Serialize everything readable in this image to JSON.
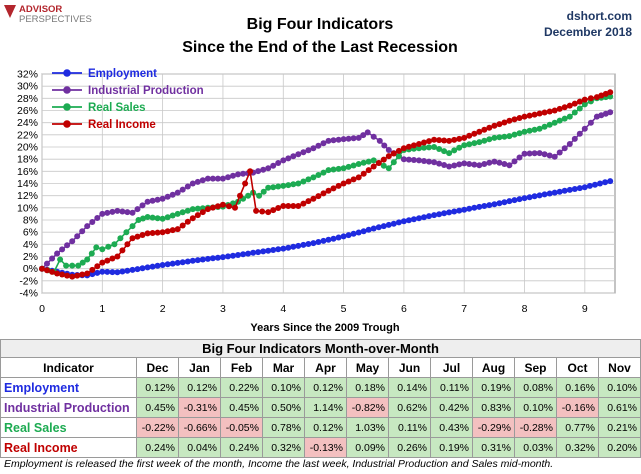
{
  "header": {
    "logo_line1": "ADVISOR",
    "logo_line2": "PERSPECTIVES",
    "title_line1": "Big Four Indicators",
    "title_line2": "Since the End of the Last Recession",
    "source": "dshort.com",
    "date": "December 2018"
  },
  "colors": {
    "employment": "#1f2be0",
    "industrial": "#7030a0",
    "sales": "#1dab52",
    "income": "#c00000"
  },
  "chart_data": {
    "type": "line",
    "title": "",
    "xlabel": "Years Since the 2009 Trough",
    "ylabel": "",
    "xlim": [
      0,
      9.5
    ],
    "ylim": [
      -4,
      32
    ],
    "x_ticks": [
      "0",
      "1",
      "2",
      "3",
      "4",
      "5",
      "6",
      "7",
      "8",
      "9"
    ],
    "y_ticks": [
      "-4%",
      "-2%",
      "0%",
      "2%",
      "4%",
      "6%",
      "8%",
      "10%",
      "12%",
      "14%",
      "16%",
      "18%",
      "20%",
      "22%",
      "24%",
      "26%",
      "28%",
      "30%",
      "32%"
    ],
    "grid": true,
    "legend_position": "top-left",
    "series": [
      {
        "name": "Employment",
        "key": "employment",
        "points": [
          [
            0,
            0
          ],
          [
            0.5,
            -1.0
          ],
          [
            0.75,
            -1.1
          ],
          [
            1.0,
            -0.5
          ],
          [
            1.25,
            -0.6
          ],
          [
            1.5,
            -0.2
          ],
          [
            2.0,
            0.6
          ],
          [
            2.5,
            1.3
          ],
          [
            3.0,
            1.9
          ],
          [
            3.5,
            2.6
          ],
          [
            4.0,
            3.3
          ],
          [
            4.5,
            4.2
          ],
          [
            5.0,
            5.3
          ],
          [
            5.5,
            6.6
          ],
          [
            6.0,
            7.8
          ],
          [
            6.5,
            8.8
          ],
          [
            7.0,
            9.7
          ],
          [
            7.5,
            10.6
          ],
          [
            8.0,
            11.6
          ],
          [
            8.5,
            12.5
          ],
          [
            9.0,
            13.4
          ],
          [
            9.42,
            14.4
          ]
        ]
      },
      {
        "name": "Industrial Production",
        "key": "industrial",
        "points": [
          [
            0,
            0
          ],
          [
            0.25,
            2.5
          ],
          [
            0.5,
            4.5
          ],
          [
            0.75,
            7.0
          ],
          [
            1.0,
            9.0
          ],
          [
            1.25,
            9.5
          ],
          [
            1.5,
            9.2
          ],
          [
            1.75,
            11.0
          ],
          [
            2.0,
            11.5
          ],
          [
            2.25,
            12.5
          ],
          [
            2.5,
            14.0
          ],
          [
            2.75,
            14.8
          ],
          [
            3.0,
            14.8
          ],
          [
            3.25,
            15.5
          ],
          [
            3.5,
            15.8
          ],
          [
            3.75,
            16.5
          ],
          [
            4.0,
            17.8
          ],
          [
            4.25,
            18.8
          ],
          [
            4.5,
            19.8
          ],
          [
            4.75,
            21.0
          ],
          [
            5.0,
            21.3
          ],
          [
            5.25,
            21.5
          ],
          [
            5.4,
            22.4
          ],
          [
            5.6,
            21.0
          ],
          [
            5.75,
            19.5
          ],
          [
            6.0,
            18.0
          ],
          [
            6.25,
            17.8
          ],
          [
            6.5,
            17.5
          ],
          [
            6.75,
            16.8
          ],
          [
            7.0,
            17.3
          ],
          [
            7.25,
            17.0
          ],
          [
            7.5,
            17.6
          ],
          [
            7.75,
            17.0
          ],
          [
            8.0,
            18.9
          ],
          [
            8.25,
            19.0
          ],
          [
            8.5,
            18.4
          ],
          [
            8.75,
            20.5
          ],
          [
            9.0,
            23.0
          ],
          [
            9.2,
            25.0
          ],
          [
            9.42,
            25.7
          ]
        ]
      },
      {
        "name": "Real Sales",
        "key": "sales",
        "points": [
          [
            0,
            0
          ],
          [
            0.2,
            -0.5
          ],
          [
            0.3,
            1.5
          ],
          [
            0.4,
            0.5
          ],
          [
            0.6,
            0.5
          ],
          [
            0.75,
            1.5
          ],
          [
            0.9,
            3.5
          ],
          [
            1.0,
            3.2
          ],
          [
            1.2,
            4.0
          ],
          [
            1.4,
            6.0
          ],
          [
            1.6,
            8.0
          ],
          [
            1.75,
            8.5
          ],
          [
            2.0,
            8.2
          ],
          [
            2.25,
            9.0
          ],
          [
            2.5,
            9.8
          ],
          [
            2.75,
            10.0
          ],
          [
            3.0,
            10.2
          ],
          [
            3.25,
            11.0
          ],
          [
            3.5,
            12.5
          ],
          [
            3.6,
            12.0
          ],
          [
            3.75,
            13.3
          ],
          [
            4.0,
            13.6
          ],
          [
            4.25,
            14.0
          ],
          [
            4.5,
            15.0
          ],
          [
            4.75,
            16.2
          ],
          [
            5.0,
            16.5
          ],
          [
            5.25,
            17.2
          ],
          [
            5.5,
            17.8
          ],
          [
            5.75,
            16.5
          ],
          [
            6.0,
            19.5
          ],
          [
            6.25,
            19.8
          ],
          [
            6.5,
            20.0
          ],
          [
            6.75,
            19.0
          ],
          [
            7.0,
            20.3
          ],
          [
            7.25,
            20.8
          ],
          [
            7.5,
            21.5
          ],
          [
            7.75,
            21.8
          ],
          [
            8.0,
            22.5
          ],
          [
            8.25,
            23.0
          ],
          [
            8.5,
            24.0
          ],
          [
            8.75,
            25.0
          ],
          [
            9.0,
            27.0
          ],
          [
            9.2,
            28.0
          ],
          [
            9.42,
            28.3
          ]
        ]
      },
      {
        "name": "Real Income",
        "key": "income",
        "points": [
          [
            0,
            0
          ],
          [
            0.25,
            -0.8
          ],
          [
            0.5,
            -1.3
          ],
          [
            0.75,
            -0.8
          ],
          [
            1.0,
            1.0
          ],
          [
            1.25,
            2.0
          ],
          [
            1.5,
            5.0
          ],
          [
            1.75,
            5.8
          ],
          [
            2.0,
            6.0
          ],
          [
            2.25,
            6.5
          ],
          [
            2.5,
            8.3
          ],
          [
            2.75,
            9.8
          ],
          [
            3.0,
            10.5
          ],
          [
            3.2,
            10.0
          ],
          [
            3.45,
            16.0
          ],
          [
            3.55,
            9.5
          ],
          [
            3.75,
            9.3
          ],
          [
            4.0,
            10.3
          ],
          [
            4.25,
            10.3
          ],
          [
            4.5,
            11.5
          ],
          [
            4.75,
            12.8
          ],
          [
            5.0,
            14.0
          ],
          [
            5.25,
            15.0
          ],
          [
            5.5,
            16.8
          ],
          [
            5.75,
            18.5
          ],
          [
            6.0,
            19.8
          ],
          [
            6.25,
            20.5
          ],
          [
            6.5,
            21.2
          ],
          [
            6.75,
            21.0
          ],
          [
            7.0,
            21.5
          ],
          [
            7.25,
            22.5
          ],
          [
            7.5,
            23.5
          ],
          [
            7.75,
            24.3
          ],
          [
            8.0,
            25.0
          ],
          [
            8.25,
            25.5
          ],
          [
            8.5,
            26.0
          ],
          [
            8.75,
            26.8
          ],
          [
            9.0,
            27.8
          ],
          [
            9.2,
            28.2
          ],
          [
            9.42,
            29.0
          ]
        ]
      }
    ]
  },
  "table": {
    "title": "Big Four Indicators Month-over-Month",
    "indicator_header": "Indicator",
    "months": [
      "Dec",
      "Jan",
      "Feb",
      "Mar",
      "Apr",
      "May",
      "Jun",
      "Jul",
      "Aug",
      "Sep",
      "Oct",
      "Nov"
    ],
    "rows": [
      {
        "name": "Employment",
        "color_key": "employment",
        "values": [
          "0.12%",
          "0.12%",
          "0.22%",
          "0.10%",
          "0.12%",
          "0.18%",
          "0.14%",
          "0.11%",
          "0.19%",
          "0.08%",
          "0.16%",
          "0.10%"
        ]
      },
      {
        "name": "Industrial Production",
        "color_key": "industrial",
        "values": [
          "0.45%",
          "-0.31%",
          "0.45%",
          "0.50%",
          "1.14%",
          "-0.82%",
          "0.62%",
          "0.42%",
          "0.83%",
          "0.10%",
          "-0.16%",
          "0.61%"
        ]
      },
      {
        "name": "Real Sales",
        "color_key": "sales",
        "values": [
          "-0.22%",
          "-0.66%",
          "-0.05%",
          "0.78%",
          "0.12%",
          "1.03%",
          "0.11%",
          "0.43%",
          "-0.29%",
          "-0.28%",
          "0.77%",
          "0.21%"
        ]
      },
      {
        "name": "Real Income",
        "color_key": "income",
        "values": [
          "0.24%",
          "0.04%",
          "0.24%",
          "0.32%",
          "-0.13%",
          "0.09%",
          "0.26%",
          "0.19%",
          "0.31%",
          "0.03%",
          "0.32%",
          "0.20%"
        ]
      }
    ]
  },
  "footnote": "Employment is released the first week of the month, Income the last week, Industrial Production and Sales mid-month."
}
